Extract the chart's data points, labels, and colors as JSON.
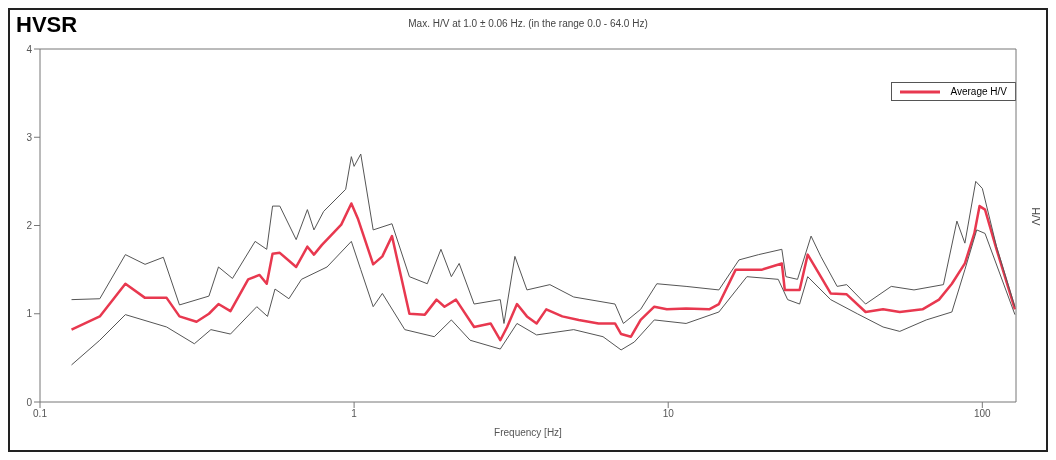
{
  "chart_data": {
    "type": "line",
    "title": "HVSR",
    "subtitle": "Max. H/V at 1.0 ± 0.06 Hz. (in the range 0.0 - 64.0 Hz)",
    "xlabel": "Frequency [Hz]",
    "ylabel": "H/V",
    "log": "x",
    "xlim": [
      0.1,
      128
    ],
    "xticks": [
      {
        "value": 0.1,
        "label": "0.1"
      },
      1,
      10,
      100
    ],
    "ylim": [
      0,
      4
    ],
    "yticks": [
      0,
      1,
      2,
      3,
      4
    ],
    "grid": false,
    "legend": "top right",
    "marker": "none",
    "line_style": "solid",
    "series": [
      {
        "name": "Average H/V",
        "color": "#e8384f",
        "x": [
          0.126,
          0.155,
          0.187,
          0.216,
          0.253,
          0.278,
          0.315,
          0.345,
          0.37,
          0.404,
          0.46,
          0.5,
          0.527,
          0.55,
          0.58,
          0.654,
          0.71,
          0.745,
          0.79,
          0.84,
          0.91,
          0.98,
          1.03,
          1.15,
          1.23,
          1.32,
          1.5,
          1.68,
          1.83,
          1.94,
          2.11,
          2.41,
          2.72,
          2.92,
          3.07,
          3.3,
          3.55,
          3.81,
          4.09,
          4.6,
          5.19,
          6.0,
          6.77,
          7.08,
          7.61,
          8.17,
          9.03,
          9.9,
          11.4,
          13.5,
          14.5,
          16.4,
          19.9,
          23.0,
          23.5,
          26.2,
          27.8,
          30.6,
          32.9,
          37.0,
          42.5,
          48.3,
          54.6,
          64.5,
          72.8,
          80.0,
          88.0,
          94.3,
          98,
          102,
          111,
          127
        ],
        "values": [
          0.82,
          0.97,
          1.34,
          1.18,
          1.18,
          0.97,
          0.91,
          1.0,
          1.11,
          1.03,
          1.39,
          1.44,
          1.34,
          1.68,
          1.69,
          1.53,
          1.76,
          1.67,
          1.78,
          1.88,
          2.01,
          2.25,
          2.07,
          1.56,
          1.65,
          1.88,
          1.0,
          0.99,
          1.16,
          1.08,
          1.16,
          0.85,
          0.89,
          0.7,
          0.85,
          1.11,
          0.97,
          0.89,
          1.05,
          0.97,
          0.93,
          0.89,
          0.89,
          0.77,
          0.74,
          0.93,
          1.08,
          1.05,
          1.06,
          1.05,
          1.11,
          1.5,
          1.5,
          1.57,
          1.27,
          1.27,
          1.67,
          1.42,
          1.23,
          1.22,
          1.02,
          1.05,
          1.02,
          1.05,
          1.16,
          1.34,
          1.57,
          1.91,
          2.22,
          2.18,
          1.73,
          1.05
        ]
      },
      {
        "color": "#555555",
        "x": [
          0.126,
          0.155,
          0.187,
          0.216,
          0.247,
          0.278,
          0.345,
          0.37,
          0.41,
          0.484,
          0.527,
          0.55,
          0.58,
          0.654,
          0.71,
          0.745,
          0.8,
          0.94,
          0.98,
          1.0,
          1.05,
          1.15,
          1.32,
          1.5,
          1.71,
          1.89,
          2.04,
          2.16,
          2.41,
          2.92,
          3.0,
          3.25,
          3.55,
          4.2,
          5.0,
          6.77,
          7.2,
          8.17,
          9.2,
          11.4,
          14.5,
          16.8,
          19.4,
          23.0,
          23.7,
          25.8,
          28.5,
          30.6,
          34.5,
          37,
          42.5,
          51.3,
          60.6,
          75.2,
          83.0,
          88,
          95.3,
          100,
          111,
          127
        ],
        "values": [
          1.16,
          1.17,
          1.67,
          1.56,
          1.64,
          1.1,
          1.2,
          1.53,
          1.4,
          1.82,
          1.73,
          2.22,
          2.22,
          1.84,
          2.18,
          1.95,
          2.16,
          2.41,
          2.78,
          2.67,
          2.81,
          1.95,
          2.02,
          1.42,
          1.34,
          1.73,
          1.42,
          1.57,
          1.11,
          1.16,
          0.89,
          1.65,
          1.27,
          1.33,
          1.19,
          1.11,
          0.89,
          1.05,
          1.34,
          1.31,
          1.27,
          1.61,
          1.67,
          1.73,
          1.42,
          1.39,
          1.88,
          1.65,
          1.31,
          1.33,
          1.11,
          1.31,
          1.27,
          1.33,
          2.05,
          1.8,
          2.5,
          2.42,
          1.76,
          1.08
        ]
      },
      {
        "color": "#555555",
        "x": [
          0.126,
          0.155,
          0.187,
          0.253,
          0.31,
          0.35,
          0.404,
          0.49,
          0.53,
          0.56,
          0.62,
          0.68,
          0.82,
          0.98,
          1.05,
          1.15,
          1.23,
          1.45,
          1.8,
          2.04,
          2.34,
          2.92,
          3.3,
          3.81,
          5.0,
          6.2,
          7.08,
          7.8,
          9.03,
          11.4,
          14.5,
          17.8,
          22.4,
          24.0,
          26.2,
          27.8,
          32.9,
          40,
          48.3,
          54.6,
          66.3,
          80,
          88,
          96,
          102,
          127
        ],
        "values": [
          0.42,
          0.7,
          0.99,
          0.85,
          0.66,
          0.82,
          0.77,
          1.08,
          0.97,
          1.28,
          1.17,
          1.39,
          1.53,
          1.82,
          1.5,
          1.08,
          1.23,
          0.82,
          0.74,
          0.93,
          0.7,
          0.6,
          0.89,
          0.76,
          0.82,
          0.74,
          0.59,
          0.68,
          0.93,
          0.89,
          1.02,
          1.42,
          1.39,
          1.16,
          1.11,
          1.42,
          1.16,
          1.0,
          0.85,
          0.8,
          0.93,
          1.02,
          1.5,
          1.95,
          1.91,
          0.99
        ]
      }
    ]
  }
}
